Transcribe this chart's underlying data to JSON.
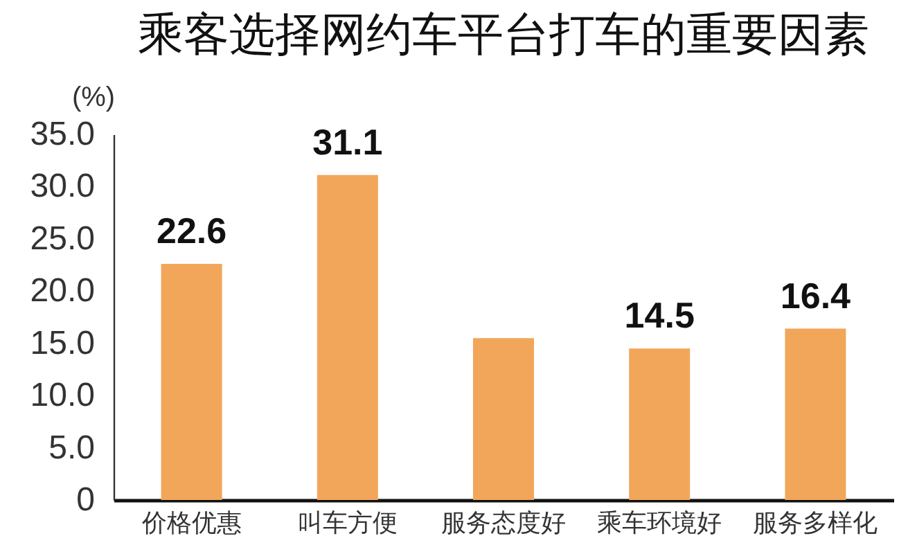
{
  "chart_data": {
    "type": "bar",
    "title": "乘客选择网约车平台打车的重要因素",
    "ylabel": "(%)",
    "categories": [
      "价格优惠",
      "叫车方便",
      "服务态度好",
      "乘车环境好",
      "服务多样化"
    ],
    "values": [
      22.6,
      31.1,
      15.5,
      14.5,
      16.4
    ],
    "color": "#f2a65a",
    "value_labels": [
      "22.6",
      "31.1",
      null,
      "14.5",
      "16.4"
    ],
    "ylim": [
      0,
      35
    ],
    "yticks": [
      0,
      {
        "value": 5,
        "label": "5.0"
      },
      {
        "value": 10,
        "label": "10.0"
      },
      {
        "value": 15,
        "label": "15.0"
      },
      {
        "value": 20,
        "label": "20.0"
      },
      {
        "value": 25,
        "label": "25.0"
      },
      {
        "value": 30,
        "label": "30.0"
      },
      {
        "value": 35,
        "label": "35.0"
      }
    ]
  }
}
